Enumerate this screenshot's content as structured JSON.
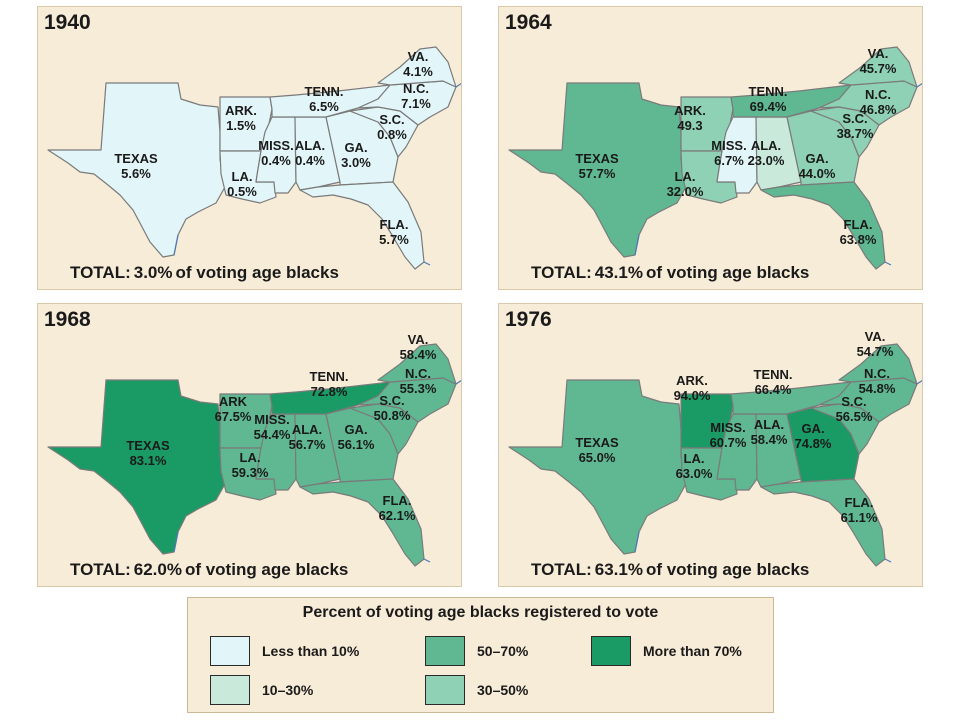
{
  "maps": [
    {
      "year": "1940",
      "total_prefix": "TOTAL:",
      "total_value": "3.0%",
      "total_suffix": "of voting age blacks",
      "states": [
        {
          "id": "texas",
          "name": "TEXAS",
          "pct": "5.6%",
          "category": "lt10"
        },
        {
          "id": "ark",
          "name": "ARK.",
          "pct": "1.5%",
          "category": "lt10"
        },
        {
          "id": "la",
          "name": "LA.",
          "pct": "0.5%",
          "category": "lt10"
        },
        {
          "id": "miss",
          "name": "MISS.",
          "pct": "0.4%",
          "category": "lt10"
        },
        {
          "id": "ala",
          "name": "ALA.",
          "pct": "0.4%",
          "category": "lt10"
        },
        {
          "id": "tenn",
          "name": "TENN.",
          "pct": "6.5%",
          "category": "lt10"
        },
        {
          "id": "ga",
          "name": "GA.",
          "pct": "3.0%",
          "category": "lt10"
        },
        {
          "id": "fla",
          "name": "FLA.",
          "pct": "5.7%",
          "category": "lt10"
        },
        {
          "id": "sc",
          "name": "S.C.",
          "pct": "0.8%",
          "category": "lt10"
        },
        {
          "id": "nc",
          "name": "N.C.",
          "pct": "7.1%",
          "category": "lt10"
        },
        {
          "id": "va",
          "name": "VA.",
          "pct": "4.1%",
          "category": "lt10"
        }
      ]
    },
    {
      "year": "1964",
      "total_prefix": "TOTAL:",
      "total_value": "43.1%",
      "total_suffix": "of voting age blacks",
      "states": [
        {
          "id": "texas",
          "name": "TEXAS",
          "pct": "57.7%",
          "category": "50to70"
        },
        {
          "id": "ark",
          "name": "ARK.",
          "pct": "49.3",
          "category": "30to50"
        },
        {
          "id": "la",
          "name": "LA.",
          "pct": "32.0%",
          "category": "30to50"
        },
        {
          "id": "miss",
          "name": "MISS.",
          "pct": "6.7%",
          "category": "lt10"
        },
        {
          "id": "ala",
          "name": "ALA.",
          "pct": "23.0%",
          "category": "10to30"
        },
        {
          "id": "tenn",
          "name": "TENN.",
          "pct": "69.4%",
          "category": "50to70"
        },
        {
          "id": "ga",
          "name": "GA.",
          "pct": "44.0%",
          "category": "30to50"
        },
        {
          "id": "fla",
          "name": "FLA.",
          "pct": "63.8%",
          "category": "50to70"
        },
        {
          "id": "sc",
          "name": "S.C.",
          "pct": "38.7%",
          "category": "30to50"
        },
        {
          "id": "nc",
          "name": "N.C.",
          "pct": "46.8%",
          "category": "30to50"
        },
        {
          "id": "va",
          "name": "VA.",
          "pct": "45.7%",
          "category": "30to50"
        }
      ]
    },
    {
      "year": "1968",
      "total_prefix": "TOTAL:",
      "total_value": "62.0%",
      "total_suffix": "of voting age blacks",
      "states": [
        {
          "id": "texas",
          "name": "TEXAS",
          "pct": "83.1%",
          "category": "gt70"
        },
        {
          "id": "ark",
          "name": "ARK",
          "pct": "67.5%",
          "category": "50to70"
        },
        {
          "id": "la",
          "name": "LA.",
          "pct": "59.3%",
          "category": "50to70"
        },
        {
          "id": "miss",
          "name": "MISS.",
          "pct": "54.4%",
          "category": "50to70"
        },
        {
          "id": "ala",
          "name": "ALA.",
          "pct": "56.7%",
          "category": "50to70"
        },
        {
          "id": "tenn",
          "name": "TENN.",
          "pct": "72.8%",
          "category": "gt70"
        },
        {
          "id": "ga",
          "name": "GA.",
          "pct": "56.1%",
          "category": "50to70"
        },
        {
          "id": "fla",
          "name": "FLA.",
          "pct": "62.1%",
          "category": "50to70"
        },
        {
          "id": "sc",
          "name": "S.C.",
          "pct": "50.8%",
          "category": "50to70"
        },
        {
          "id": "nc",
          "name": "N.C.",
          "pct": "55.3%",
          "category": "50to70"
        },
        {
          "id": "va",
          "name": "VA.",
          "pct": "58.4%",
          "category": "50to70"
        }
      ]
    },
    {
      "year": "1976",
      "total_prefix": "TOTAL:",
      "total_value": "63.1%",
      "total_suffix": "of voting age blacks",
      "states": [
        {
          "id": "texas",
          "name": "TEXAS",
          "pct": "65.0%",
          "category": "50to70"
        },
        {
          "id": "ark",
          "name": "ARK.",
          "pct": "94.0%",
          "category": "gt70"
        },
        {
          "id": "la",
          "name": "LA.",
          "pct": "63.0%",
          "category": "50to70"
        },
        {
          "id": "miss",
          "name": "MISS.",
          "pct": "60.7%",
          "category": "50to70"
        },
        {
          "id": "ala",
          "name": "ALA.",
          "pct": "58.4%",
          "category": "50to70"
        },
        {
          "id": "tenn",
          "name": "TENN.",
          "pct": "66.4%",
          "category": "50to70"
        },
        {
          "id": "ga",
          "name": "GA.",
          "pct": "74.8%",
          "category": "gt70"
        },
        {
          "id": "fla",
          "name": "FLA.",
          "pct": "61.1%",
          "category": "50to70"
        },
        {
          "id": "sc",
          "name": "S.C.",
          "pct": "56.5%",
          "category": "50to70"
        },
        {
          "id": "nc",
          "name": "N.C.",
          "pct": "54.8%",
          "category": "50to70"
        },
        {
          "id": "va",
          "name": "VA.",
          "pct": "54.7%",
          "category": "50to70"
        }
      ]
    }
  ],
  "legend": {
    "title": "Percent of voting age blacks registered to vote",
    "items": [
      {
        "key": "lt10",
        "label": "Less than 10%",
        "color": "#e2f5f8"
      },
      {
        "key": "50to70",
        "label": "50–70%",
        "color": "#5fb892"
      },
      {
        "key": "gt70",
        "label": "More than 70%",
        "color": "#1a9a64"
      },
      {
        "key": "10to30",
        "label": "10–30%",
        "color": "#c9eadb"
      },
      {
        "key": "30to50",
        "label": "30–50%",
        "color": "#8fd1b4"
      }
    ]
  }
}
